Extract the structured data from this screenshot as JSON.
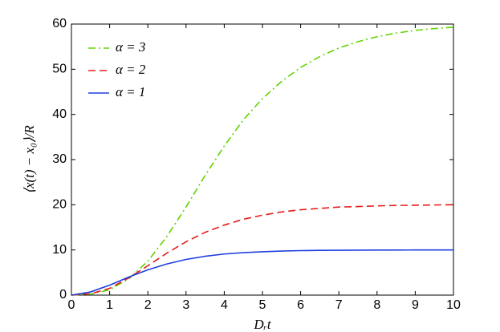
{
  "chart_data": {
    "type": "line",
    "xlabel": "Dᵣt",
    "ylabel": "⟨x(t) − x₀⟩/R",
    "x": [
      0,
      0.5,
      1,
      1.5,
      2,
      2.5,
      3,
      3.5,
      4,
      4.5,
      5,
      5.5,
      6,
      6.5,
      7,
      7.5,
      8,
      8.5,
      9,
      9.5,
      10
    ],
    "series": [
      {
        "name": "α = 3",
        "color": "#5fd400",
        "linestyle": "dashdot",
        "values": [
          0,
          0.2,
          1.2,
          3.6,
          7.5,
          13,
          19.5,
          26.5,
          33,
          38.8,
          43.5,
          47.3,
          50.4,
          52.8,
          54.7,
          56.1,
          57.2,
          58,
          58.6,
          59,
          59.3
        ]
      },
      {
        "name": "α = 2",
        "color": "#e41c1c",
        "linestyle": "dashed",
        "values": [
          0,
          0.3,
          1.5,
          3.8,
          6.5,
          9.3,
          11.8,
          13.9,
          15.5,
          16.8,
          17.7,
          18.4,
          18.9,
          19.2,
          19.5,
          19.6,
          19.75,
          19.85,
          19.9,
          19.95,
          20
        ]
      },
      {
        "name": "α = 1",
        "color": "#1f3fe0",
        "linestyle": "solid",
        "values": [
          0,
          0.7,
          2.2,
          4.0,
          5.6,
          6.9,
          7.9,
          8.6,
          9.1,
          9.4,
          9.6,
          9.75,
          9.85,
          9.9,
          9.93,
          9.95,
          9.97,
          9.98,
          9.99,
          10,
          10
        ]
      }
    ],
    "xlim": [
      0,
      10
    ],
    "xticks": [
      0,
      1,
      2,
      3,
      4,
      5,
      6,
      7,
      8,
      9,
      10
    ],
    "ylim": [
      0,
      60
    ],
    "yticks": [
      0,
      10,
      20,
      30,
      40,
      50,
      60
    ],
    "grid": false,
    "legend": "upper-left"
  }
}
